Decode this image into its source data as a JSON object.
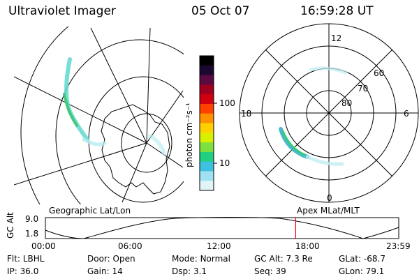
{
  "header": {
    "instrument": "Ultraviolet Imager",
    "date": "05 Oct 07",
    "time": "16:59:28 UT"
  },
  "colorbar": {
    "unit_label": "photon cm⁻²s⁻¹",
    "ticks": [
      "100",
      "10"
    ],
    "colors": [
      "#000000",
      "#1a0830",
      "#5a0a40",
      "#a00020",
      "#d00010",
      "#ff4000",
      "#ff9000",
      "#ffd000",
      "#d8f000",
      "#80e040",
      "#20d080",
      "#40c0e0",
      "#a0e0f0",
      "#e0f4f8"
    ]
  },
  "geo_panel": {
    "label": "Geographic Lat/Lon"
  },
  "polar_panel": {
    "label": "Apex MLat/MLT",
    "mlt_labels": {
      "top": "12",
      "left": "18",
      "right": "6",
      "bottom": "0"
    },
    "lat_labels": [
      "60",
      "70",
      "80"
    ]
  },
  "altitude_plot": {
    "ylabel": "GC Alt",
    "yticks": [
      "9.0",
      "1.8"
    ],
    "xticks": [
      "00:00",
      "06:00",
      "12:00",
      "18:00",
      "23:59"
    ],
    "marker_time_hours": 17.0,
    "marker_color": "#ff0000"
  },
  "footer": {
    "row1": [
      {
        "label": "Flt:",
        "value": "LBHL"
      },
      {
        "label": "Door:",
        "value": "Open"
      },
      {
        "label": "Mode:",
        "value": "Normal"
      },
      {
        "label": "GC Alt:",
        "value": "7.3 Re"
      },
      {
        "label": "GLat:",
        "value": "-68.7"
      }
    ],
    "row2": [
      {
        "label": "IP:",
        "value": "36.0"
      },
      {
        "label": "Gain:",
        "value": "14"
      },
      {
        "label": "Dsp:",
        "value": "3.1"
      },
      {
        "label": "Seq:",
        "value": "39"
      },
      {
        "label": "GLon:",
        "value": "79.1"
      }
    ]
  }
}
